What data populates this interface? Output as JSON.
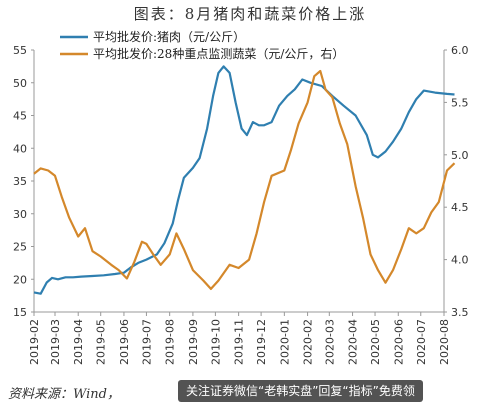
{
  "title": "图表：8月猪肉和蔬菜价格上涨",
  "source": "资料来源：Wind，",
  "watermark": "关注证券微信“老韩实盘”回复“指标”免费领",
  "chart_data": {
    "type": "line",
    "title": "图表：8月猪肉和蔬菜价格上涨",
    "x_ticks": [
      "2019-02",
      "2019-03",
      "2019-04",
      "2019-05",
      "2019-06",
      "2019-07",
      "2019-08",
      "2019-09",
      "2019-10",
      "2019-11",
      "2019-12",
      "2020-01",
      "2020-02",
      "2020-03",
      "2020-04",
      "2020-05",
      "2020-06",
      "2020-07",
      "2020-08"
    ],
    "y_left": {
      "range": [
        15,
        55
      ],
      "ticks": [
        15,
        20,
        25,
        30,
        35,
        40,
        45,
        50,
        55
      ]
    },
    "y_right": {
      "range": [
        3.5,
        6.0
      ],
      "ticks": [
        "3.5",
        "4.0",
        "4.5",
        "5.0",
        "5.5",
        "6.0"
      ]
    },
    "legend_position": "top-left",
    "grid": false,
    "series": [
      {
        "name": "平均批发价:猪肉（元/公斤）",
        "axis": "left",
        "color": "#2f7fb0",
        "points": [
          [
            "2019-02-01",
            18.0
          ],
          [
            "2019-02-10",
            17.8
          ],
          [
            "2019-02-18",
            19.5
          ],
          [
            "2019-02-25",
            20.2
          ],
          [
            "2019-03-05",
            20.0
          ],
          [
            "2019-03-15",
            20.3
          ],
          [
            "2019-03-25",
            20.3
          ],
          [
            "2019-04-05",
            20.4
          ],
          [
            "2019-04-20",
            20.5
          ],
          [
            "2019-05-05",
            20.6
          ],
          [
            "2019-05-20",
            20.8
          ],
          [
            "2019-06-01",
            21.0
          ],
          [
            "2019-06-10",
            21.8
          ],
          [
            "2019-06-20",
            22.5
          ],
          [
            "2019-07-01",
            23.0
          ],
          [
            "2019-07-15",
            23.8
          ],
          [
            "2019-07-25",
            25.5
          ],
          [
            "2019-08-05",
            28.5
          ],
          [
            "2019-08-12",
            32.0
          ],
          [
            "2019-08-20",
            35.5
          ],
          [
            "2019-09-01",
            37.0
          ],
          [
            "2019-09-10",
            38.5
          ],
          [
            "2019-09-20",
            43.0
          ],
          [
            "2019-09-28",
            48.0
          ],
          [
            "2019-10-05",
            51.5
          ],
          [
            "2019-10-12",
            52.5
          ],
          [
            "2019-10-20",
            51.5
          ],
          [
            "2019-10-28",
            47.0
          ],
          [
            "2019-11-05",
            43.0
          ],
          [
            "2019-11-12",
            42.0
          ],
          [
            "2019-11-20",
            44.0
          ],
          [
            "2019-11-28",
            43.5
          ],
          [
            "2019-12-05",
            43.5
          ],
          [
            "2019-12-15",
            44.0
          ],
          [
            "2019-12-25",
            46.5
          ],
          [
            "2020-01-05",
            48.0
          ],
          [
            "2020-01-15",
            49.0
          ],
          [
            "2020-01-25",
            50.5
          ],
          [
            "2020-02-05",
            50.0
          ],
          [
            "2020-02-20",
            49.5
          ],
          [
            "2020-03-05",
            48.0
          ],
          [
            "2020-03-20",
            46.5
          ],
          [
            "2020-04-05",
            45.0
          ],
          [
            "2020-04-20",
            42.0
          ],
          [
            "2020-04-28",
            39.0
          ],
          [
            "2020-05-05",
            38.6
          ],
          [
            "2020-05-15",
            39.5
          ],
          [
            "2020-05-25",
            41.0
          ],
          [
            "2020-06-05",
            43.0
          ],
          [
            "2020-06-15",
            45.5
          ],
          [
            "2020-06-25",
            47.5
          ],
          [
            "2020-07-05",
            48.8
          ],
          [
            "2020-07-20",
            48.5
          ],
          [
            "2020-08-05",
            48.3
          ],
          [
            "2020-08-15",
            48.2
          ]
        ]
      },
      {
        "name": "平均批发价:28种重点监测蔬菜（元/公斤，右）",
        "axis": "right",
        "color": "#d4882b",
        "points": [
          [
            "2019-02-01",
            4.82
          ],
          [
            "2019-02-10",
            4.87
          ],
          [
            "2019-02-20",
            4.85
          ],
          [
            "2019-03-01",
            4.8
          ],
          [
            "2019-03-10",
            4.6
          ],
          [
            "2019-03-20",
            4.4
          ],
          [
            "2019-04-01",
            4.22
          ],
          [
            "2019-04-10",
            4.3
          ],
          [
            "2019-04-20",
            4.08
          ],
          [
            "2019-05-01",
            4.03
          ],
          [
            "2019-05-15",
            3.95
          ],
          [
            "2019-05-25",
            3.9
          ],
          [
            "2019-06-05",
            3.82
          ],
          [
            "2019-06-15",
            3.98
          ],
          [
            "2019-06-25",
            4.17
          ],
          [
            "2019-07-01",
            4.15
          ],
          [
            "2019-07-10",
            4.05
          ],
          [
            "2019-07-20",
            3.95
          ],
          [
            "2019-08-01",
            4.05
          ],
          [
            "2019-08-10",
            4.25
          ],
          [
            "2019-08-20",
            4.1
          ],
          [
            "2019-09-01",
            3.9
          ],
          [
            "2019-09-15",
            3.8
          ],
          [
            "2019-09-25",
            3.72
          ],
          [
            "2019-10-05",
            3.8
          ],
          [
            "2019-10-20",
            3.95
          ],
          [
            "2019-11-01",
            3.92
          ],
          [
            "2019-11-15",
            4.0
          ],
          [
            "2019-11-25",
            4.25
          ],
          [
            "2019-12-05",
            4.55
          ],
          [
            "2019-12-15",
            4.8
          ],
          [
            "2020-01-01",
            4.85
          ],
          [
            "2020-01-10",
            5.05
          ],
          [
            "2020-01-20",
            5.3
          ],
          [
            "2020-02-01",
            5.5
          ],
          [
            "2020-02-10",
            5.75
          ],
          [
            "2020-02-18",
            5.8
          ],
          [
            "2020-02-25",
            5.62
          ],
          [
            "2020-03-05",
            5.55
          ],
          [
            "2020-03-15",
            5.3
          ],
          [
            "2020-03-25",
            5.1
          ],
          [
            "2020-04-05",
            4.7
          ],
          [
            "2020-04-15",
            4.4
          ],
          [
            "2020-04-25",
            4.05
          ],
          [
            "2020-05-05",
            3.9
          ],
          [
            "2020-05-15",
            3.78
          ],
          [
            "2020-05-25",
            3.9
          ],
          [
            "2020-06-05",
            4.1
          ],
          [
            "2020-06-15",
            4.3
          ],
          [
            "2020-06-25",
            4.25
          ],
          [
            "2020-07-05",
            4.3
          ],
          [
            "2020-07-15",
            4.45
          ],
          [
            "2020-07-25",
            4.55
          ],
          [
            "2020-08-05",
            4.85
          ],
          [
            "2020-08-15",
            4.92
          ]
        ]
      }
    ]
  }
}
